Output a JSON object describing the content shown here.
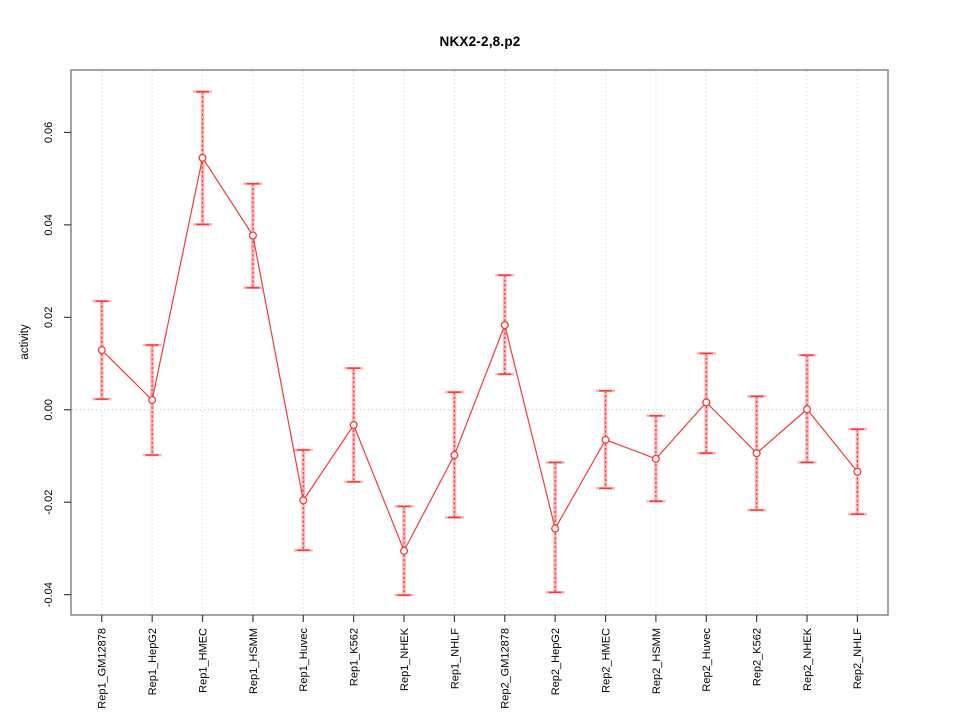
{
  "chart_data": {
    "type": "line",
    "title": "NKX2-2,8.p2",
    "ylabel": "activity",
    "xlabel": "",
    "categories": [
      "Rep1_GM12878",
      "Rep1_HepG2",
      "Rep1_HMEC",
      "Rep1_HSMM",
      "Rep1_Huvec",
      "Rep1_K562",
      "Rep1_NHEK",
      "Rep1_NHLF",
      "Rep2_GM12878",
      "Rep2_HepG2",
      "Rep2_HMEC",
      "Rep2_HSMM",
      "Rep2_Huvec",
      "Rep2_K562",
      "Rep2_NHEK",
      "Rep2_NHLF"
    ],
    "series": [
      {
        "name": "activity",
        "values": [
          0.0129,
          0.0021,
          0.0545,
          0.0377,
          -0.0196,
          -0.0033,
          -0.0305,
          -0.0098,
          0.0183,
          -0.0257,
          -0.0065,
          -0.0106,
          0.0016,
          -0.0094,
          0.0001,
          -0.0134
        ],
        "ci_low": [
          0.0023,
          -0.0098,
          0.0401,
          0.0264,
          -0.0304,
          -0.0156,
          -0.0401,
          -0.0233,
          0.0077,
          -0.0395,
          -0.017,
          -0.0198,
          -0.0094,
          -0.0217,
          -0.0114,
          -0.0226
        ],
        "ci_high": [
          0.0235,
          0.014,
          0.0688,
          0.0489,
          -0.0087,
          0.009,
          -0.0209,
          0.0038,
          0.0291,
          -0.0114,
          0.0041,
          -0.0013,
          0.0122,
          0.0029,
          0.0118,
          -0.0042
        ]
      }
    ],
    "ylim": [
      -0.0444,
      0.0735
    ],
    "yticks": [
      {
        "value": -0.04,
        "label": "-0.04"
      },
      {
        "value": -0.02,
        "label": "-0.02"
      },
      {
        "value": 0.0,
        "label": "0.00"
      },
      {
        "value": 0.02,
        "label": "0.02"
      },
      {
        "value": 0.04,
        "label": "0.04"
      },
      {
        "value": 0.06,
        "label": "0.06"
      }
    ],
    "grid": {
      "vertical_at_each_category": true,
      "horizontal_at_zero": true
    },
    "legend": "none",
    "marker": "open-circle",
    "error_bars": "two-layer (wide light band + narrow dashed bar with caps)",
    "colors": {
      "series": "#f03c3c",
      "band": "#ffb6b6",
      "grid": "#dadada",
      "zero_line": "#c9c9c9",
      "box": "#868686",
      "tick": "#3f3f3f",
      "text": "#000000",
      "background": "#ffffff"
    }
  }
}
